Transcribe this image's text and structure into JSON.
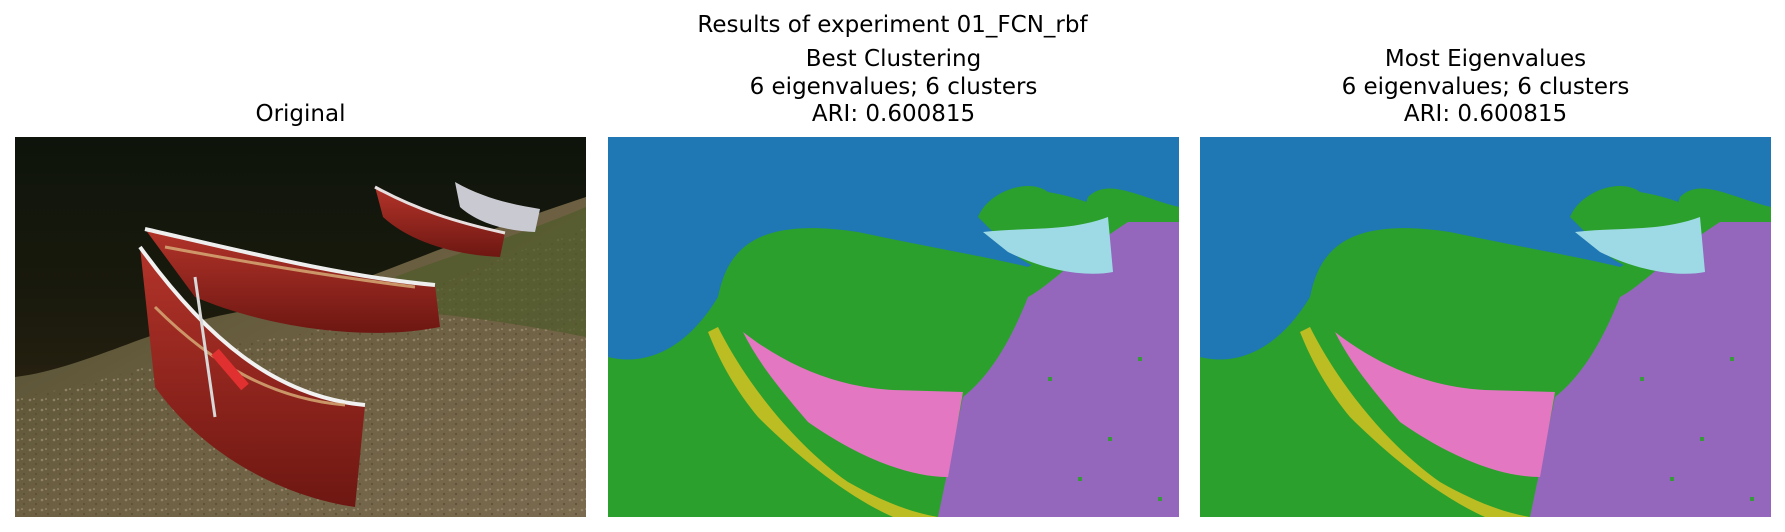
{
  "figure": {
    "suptitle": "Results of experiment 01_FCN_rbf"
  },
  "panels": [
    {
      "title_lines": [
        "Original"
      ],
      "image": "photo of three red canoes resting on a grassy, pebbly lakeshore next to dark water"
    },
    {
      "title_lines": [
        "Best Clustering",
        "6 eigenvalues; 6 clusters",
        "ARI: 0.600815"
      ],
      "image": "segmentation map"
    },
    {
      "title_lines": [
        "Most Eigenvalues",
        "6 eigenvalues; 6 clusters",
        "ARI: 0.600815"
      ],
      "image": "segmentation map"
    }
  ],
  "palette": {
    "blue": "#1f77b4",
    "green": "#2ca02c",
    "purple": "#9467bd",
    "pink": "#e377c2",
    "olive": "#bcbd22",
    "cyan": "#9edae5"
  }
}
